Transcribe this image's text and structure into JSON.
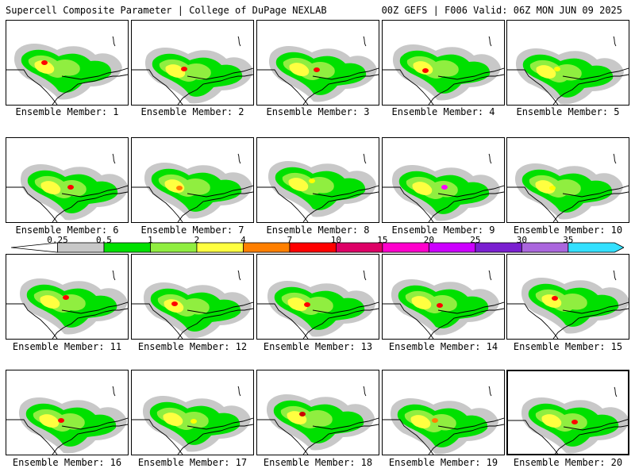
{
  "header": {
    "left": "Supercell Composite Parameter | College of DuPage NEXLAB",
    "right": "00Z GEFS | F006 Valid: 06Z MON JUN 09 2025"
  },
  "members": [
    {
      "label": "Ensemble Member: 1",
      "max_color": "#ff0000"
    },
    {
      "label": "Ensemble Member: 2",
      "max_color": "#ff0000"
    },
    {
      "label": "Ensemble Member: 3",
      "max_color": "#ff0000"
    },
    {
      "label": "Ensemble Member: 4",
      "max_color": "#ff0000"
    },
    {
      "label": "Ensemble Member: 5",
      "max_color": "#ffff00"
    },
    {
      "label": "Ensemble Member: 6",
      "max_color": "#ff0000"
    },
    {
      "label": "Ensemble Member: 7",
      "max_color": "#ff7f00"
    },
    {
      "label": "Ensemble Member: 8",
      "max_color": "#ffff00"
    },
    {
      "label": "Ensemble Member: 9",
      "max_color": "#ff00ff"
    },
    {
      "label": "Ensemble Member: 10",
      "max_color": "#ffff00"
    },
    {
      "label": "Ensemble Member: 11",
      "max_color": "#ff0000"
    },
    {
      "label": "Ensemble Member: 12",
      "max_color": "#ff0000"
    },
    {
      "label": "Ensemble Member: 13",
      "max_color": "#ff0000"
    },
    {
      "label": "Ensemble Member: 14",
      "max_color": "#ff0000"
    },
    {
      "label": "Ensemble Member: 15",
      "max_color": "#ff0000"
    },
    {
      "label": "Ensemble Member: 16",
      "max_color": "#ff0000"
    },
    {
      "label": "Ensemble Member: 17",
      "max_color": "#ffff00"
    },
    {
      "label": "Ensemble Member: 18",
      "max_color": "#cc0000"
    },
    {
      "label": "Ensemble Member: 19",
      "max_color": "#ff7f00"
    },
    {
      "label": "Ensemble Member: 20",
      "max_color": "#ff0000"
    }
  ],
  "selected_member": "Ensemble Member: 20",
  "colorbar": {
    "ticks": [
      "0.25",
      "0.5",
      "1",
      "2",
      "4",
      "7",
      "10",
      "15",
      "20",
      "25",
      "30",
      "35"
    ],
    "colors": [
      "#ffffff",
      "#c8c8c8",
      "#00e000",
      "#90ee40",
      "#ffff40",
      "#ff7f00",
      "#ff0000",
      "#dd0066",
      "#ff00cc",
      "#cc00ff",
      "#7a1fd0",
      "#aa66dd",
      "#33e0ff"
    ]
  }
}
